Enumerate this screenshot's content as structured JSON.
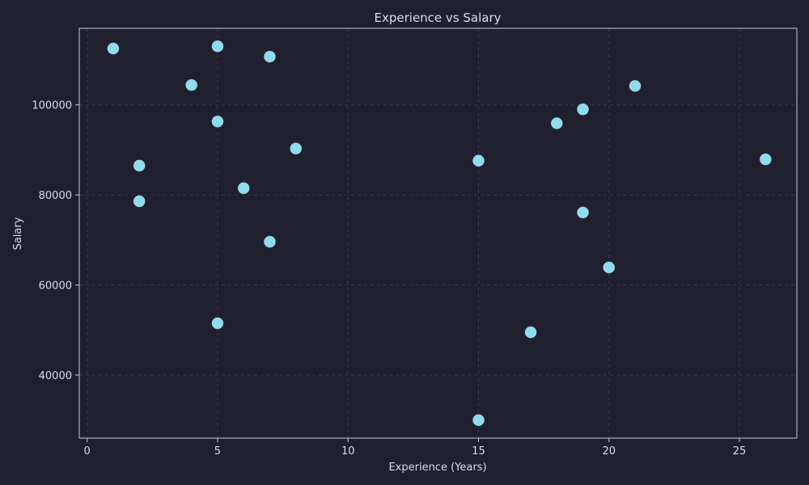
{
  "chart_data": {
    "type": "scatter",
    "title": "Experience vs Salary",
    "xlabel": "Experience (Years)",
    "ylabel": "Salary",
    "xlim": [
      -0.3,
      27.2
    ],
    "ylim": [
      26000,
      117000
    ],
    "xticks": [
      0,
      5,
      10,
      15,
      20,
      25
    ],
    "yticks": [
      40000,
      60000,
      80000,
      100000
    ],
    "grid": true,
    "colors": {
      "background": "#1f1f2e",
      "point": "#8ddcf0",
      "text": "#dcdcf0",
      "grid": "#3a3a50"
    },
    "points": [
      {
        "x": 1,
        "y": 112500
      },
      {
        "x": 5,
        "y": 113000
      },
      {
        "x": 7,
        "y": 110700
      },
      {
        "x": 4,
        "y": 104400
      },
      {
        "x": 21,
        "y": 104200
      },
      {
        "x": 19,
        "y": 99000
      },
      {
        "x": 5,
        "y": 96300
      },
      {
        "x": 18,
        "y": 95900
      },
      {
        "x": 8,
        "y": 90300
      },
      {
        "x": 15,
        "y": 87600
      },
      {
        "x": 26,
        "y": 87900
      },
      {
        "x": 2,
        "y": 86500
      },
      {
        "x": 6,
        "y": 81500
      },
      {
        "x": 2,
        "y": 78600
      },
      {
        "x": 19,
        "y": 76100
      },
      {
        "x": 7,
        "y": 69600
      },
      {
        "x": 20,
        "y": 63900
      },
      {
        "x": 5,
        "y": 51500
      },
      {
        "x": 17,
        "y": 49500
      },
      {
        "x": 15,
        "y": 30000
      }
    ]
  }
}
